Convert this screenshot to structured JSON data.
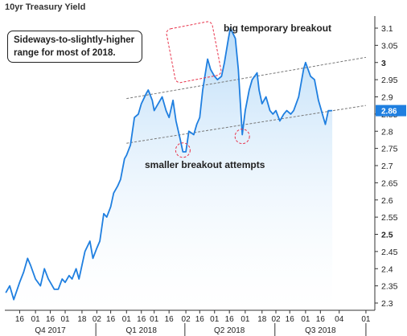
{
  "chart_data": {
    "type": "line",
    "title": "10yr Treasury Yield",
    "ylim": [
      2.27,
      3.14
    ],
    "y_ticks": [
      3.1,
      3.05,
      3,
      2.95,
      2.9,
      2.85,
      2.8,
      2.75,
      2.7,
      2.65,
      2.6,
      2.55,
      2.5,
      2.45,
      2.4,
      2.35,
      2.3
    ],
    "y_tick_labels": [
      "3.1",
      "3.05",
      "3",
      "2.95",
      "2.9",
      "2.85",
      "2.8",
      "2.75",
      "2.7",
      "2.65",
      "2.6",
      "2.55",
      "2.5",
      "2.45",
      "2.4",
      "2.35",
      "2.3"
    ],
    "x_ticks": [
      {
        "label": "16",
        "x": "2017-10-16"
      },
      {
        "label": "01",
        "x": "2017-11-01"
      },
      {
        "label": "16",
        "x": "2017-11-16"
      },
      {
        "label": "01",
        "x": "2017-12-01"
      },
      {
        "label": "18",
        "x": "2017-12-18"
      },
      {
        "label": "02",
        "x": "2018-01-02"
      },
      {
        "label": "16",
        "x": "2018-01-16"
      },
      {
        "label": "01",
        "x": "2018-02-01"
      },
      {
        "label": "16",
        "x": "2018-02-16"
      },
      {
        "label": "01",
        "x": "2018-03-01"
      },
      {
        "label": "16",
        "x": "2018-03-16"
      },
      {
        "label": "02",
        "x": "2018-04-02"
      },
      {
        "label": "16",
        "x": "2018-04-16"
      },
      {
        "label": "01",
        "x": "2018-05-01"
      },
      {
        "label": "16",
        "x": "2018-05-16"
      },
      {
        "label": "01",
        "x": "2018-06-01"
      },
      {
        "label": "18",
        "x": "2018-06-18"
      },
      {
        "label": "02",
        "x": "2018-07-02"
      },
      {
        "label": "16",
        "x": "2018-07-16"
      },
      {
        "label": "01",
        "x": "2018-08-01"
      },
      {
        "label": "16",
        "x": "2018-08-16"
      },
      {
        "label": "04",
        "x": "2018-09-04"
      },
      {
        "label": "01",
        "x": "2018-10-01"
      }
    ],
    "x_groups": [
      {
        "label": "Q4 2017",
        "x": "2017-11-16"
      },
      {
        "label": "Q1 2018",
        "x": "2018-02-16"
      },
      {
        "label": "Q2 2018",
        "x": "2018-05-16"
      },
      {
        "label": "Q3 2018",
        "x": "2018-08-16"
      }
    ],
    "series": [
      {
        "color": "#1f7fe0",
        "x": [
          "2017-10-02",
          "2017-10-06",
          "2017-10-10",
          "2017-10-16",
          "2017-10-20",
          "2017-10-24",
          "2017-10-27",
          "2017-11-01",
          "2017-11-06",
          "2017-11-10",
          "2017-11-14",
          "2017-11-16",
          "2017-11-20",
          "2017-11-24",
          "2017-11-28",
          "2017-12-01",
          "2017-12-05",
          "2017-12-08",
          "2017-12-12",
          "2017-12-15",
          "2017-12-18",
          "2017-12-21",
          "2017-12-26",
          "2017-12-29",
          "2018-01-02",
          "2018-01-05",
          "2018-01-09",
          "2018-01-12",
          "2018-01-16",
          "2018-01-19",
          "2018-01-23",
          "2018-01-26",
          "2018-01-30",
          "2018-02-01",
          "2018-02-05",
          "2018-02-09",
          "2018-02-13",
          "2018-02-16",
          "2018-02-21",
          "2018-02-23",
          "2018-02-27",
          "2018-03-01",
          "2018-03-05",
          "2018-03-09",
          "2018-03-13",
          "2018-03-16",
          "2018-03-20",
          "2018-03-23",
          "2018-03-27",
          "2018-03-30",
          "2018-04-02",
          "2018-04-05",
          "2018-04-10",
          "2018-04-13",
          "2018-04-16",
          "2018-04-19",
          "2018-04-24",
          "2018-04-27",
          "2018-05-01",
          "2018-05-04",
          "2018-05-08",
          "2018-05-11",
          "2018-05-15",
          "2018-05-17",
          "2018-05-22",
          "2018-05-25",
          "2018-05-29",
          "2018-06-01",
          "2018-06-05",
          "2018-06-08",
          "2018-06-13",
          "2018-06-15",
          "2018-06-18",
          "2018-06-22",
          "2018-06-26",
          "2018-06-29",
          "2018-07-02",
          "2018-07-06",
          "2018-07-10",
          "2018-07-13",
          "2018-07-17",
          "2018-07-20",
          "2018-07-25",
          "2018-07-30",
          "2018-08-01",
          "2018-08-06",
          "2018-08-10",
          "2018-08-14",
          "2018-08-17",
          "2018-08-21",
          "2018-08-24",
          "2018-08-28"
        ],
        "values": [
          2.33,
          2.35,
          2.31,
          2.36,
          2.39,
          2.43,
          2.41,
          2.37,
          2.35,
          2.4,
          2.37,
          2.36,
          2.34,
          2.34,
          2.37,
          2.36,
          2.38,
          2.37,
          2.4,
          2.37,
          2.41,
          2.45,
          2.48,
          2.43,
          2.46,
          2.48,
          2.56,
          2.55,
          2.58,
          2.62,
          2.64,
          2.66,
          2.72,
          2.73,
          2.76,
          2.84,
          2.85,
          2.88,
          2.91,
          2.92,
          2.89,
          2.86,
          2.88,
          2.9,
          2.86,
          2.84,
          2.89,
          2.83,
          2.78,
          2.74,
          2.74,
          2.8,
          2.79,
          2.82,
          2.84,
          2.92,
          3.01,
          2.98,
          2.96,
          2.95,
          2.96,
          3.0,
          3.07,
          3.1,
          3.07,
          2.98,
          2.79,
          2.86,
          2.92,
          2.95,
          2.97,
          2.92,
          2.88,
          2.9,
          2.86,
          2.85,
          2.86,
          2.83,
          2.85,
          2.86,
          2.85,
          2.86,
          2.9,
          2.98,
          3.0,
          2.96,
          2.95,
          2.89,
          2.86,
          2.82,
          2.86,
          2.86
        ]
      }
    ],
    "last_value_label": "2.86",
    "annotations": {
      "box_note": [
        "Sideways-to-slightly-higher",
        "range for most of 2018."
      ],
      "breakout_label": "big temporary breakout",
      "attempts_label": "smaller breakout attempts"
    },
    "colors": {
      "line": "#1f7fe0",
      "fill_top": "#b8dbf8",
      "channel": "#777777",
      "highlight": "#e8324a",
      "last_label_bg": "#1f7fe0",
      "grid_axis": "#333333"
    }
  }
}
